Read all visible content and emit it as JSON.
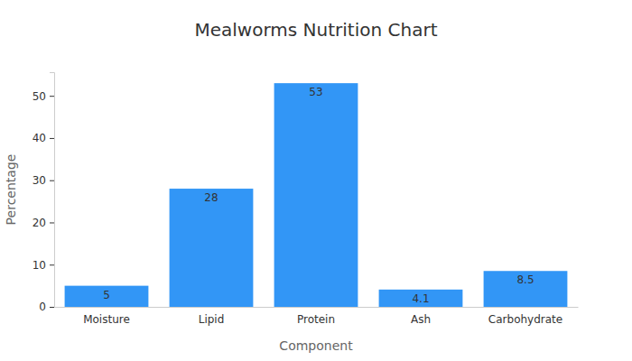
{
  "chart_data": {
    "type": "bar",
    "title": "Mealworms Nutrition Chart",
    "x_label": "Component",
    "y_label": "Percentage",
    "categories": [
      "Moisture",
      "Lipid",
      "Protein",
      "Ash",
      "Carbohydrate"
    ],
    "values": [
      5,
      28,
      53,
      4.1,
      8.5
    ],
    "color": "#3296f6",
    "ylim": [
      0,
      55.6
    ],
    "yticks": [
      0,
      10,
      20,
      30,
      40,
      50
    ],
    "grid": false,
    "data_labels": true
  }
}
